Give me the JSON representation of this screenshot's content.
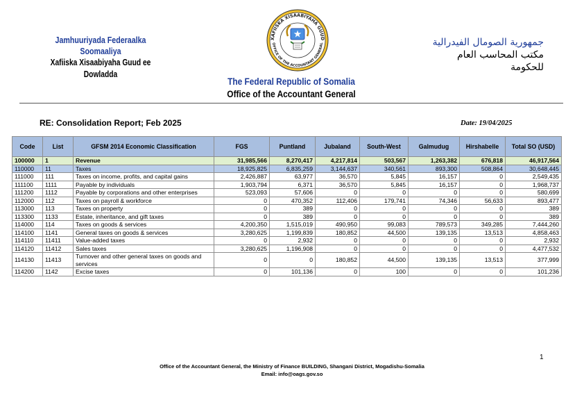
{
  "header": {
    "left_line1": "Jamhuuriyada Federaalka Soomaaliya",
    "left_line2": "Xafiiska Xisaabiyaha Guud ee",
    "left_line3": "Dowladda",
    "right_line1": "جمهورية الصومال الفيدرالية",
    "right_line2": "مكتب المحاسب العام",
    "right_line3": "للحكومة",
    "seal_top_text": "XAFIISKA XISAABIYAHA GUUD",
    "seal_bottom_text": "OFFICE OF THE ACCOUNTANT GENERAL",
    "center_line1": "The Federal Republic of Somalia",
    "center_line2": "Office of the Accountant General",
    "accent_color": "#1f3d99"
  },
  "report": {
    "title": "RE: Consolidation Report; Feb 2025",
    "date": "Date: 19/04/2025"
  },
  "table": {
    "headers": [
      "Code",
      "List",
      "GFSM 2014 Economic Classification",
      "FGS",
      "Puntland",
      "Jubaland",
      "South-West",
      "Galmudug",
      "Hirshabelle",
      "Total SO (USD)"
    ],
    "rows": [
      {
        "style": "revenue",
        "code": "100000",
        "list": "1",
        "desc": "Revenue",
        "fgs": "31,985,566",
        "puntland": "8,270,417",
        "jubaland": "4,217,814",
        "southwest": "503,567",
        "galmudug": "1,263,382",
        "hirshabelle": "676,818",
        "total": "46,917,564"
      },
      {
        "style": "taxes",
        "code": "110000",
        "list": "11",
        "desc": "Taxes",
        "fgs": "18,925,825",
        "puntland": "6,835,259",
        "jubaland": "3,144,637",
        "southwest": "340,561",
        "galmudug": "893,300",
        "hirshabelle": "508,864",
        "total": "30,648,445"
      },
      {
        "style": "std",
        "code": "111000",
        "list": "111",
        "desc": "Taxes on income, profits, and capital gains",
        "fgs": "2,426,887",
        "puntland": "63,977",
        "jubaland": "36,570",
        "southwest": "5,845",
        "galmudug": "16,157",
        "hirshabelle": "0",
        "total": "2,549,435"
      },
      {
        "style": "std",
        "code": "111100",
        "list": "1111",
        "desc": "Payable by individuals",
        "fgs": "1,903,794",
        "puntland": "6,371",
        "jubaland": "36,570",
        "southwest": "5,845",
        "galmudug": "16,157",
        "hirshabelle": "0",
        "total": "1,968,737"
      },
      {
        "style": "std",
        "code": "111200",
        "list": "1112",
        "desc": "Payable by corporations and other enterprises",
        "fgs": "523,093",
        "puntland": "57,606",
        "jubaland": "0",
        "southwest": "0",
        "galmudug": "0",
        "hirshabelle": "0",
        "total": "580,699"
      },
      {
        "style": "std",
        "code": "112000",
        "list": "112",
        "desc": "Taxes on payroll & workforce",
        "fgs": "0",
        "puntland": "470,352",
        "jubaland": "112,406",
        "southwest": "179,741",
        "galmudug": "74,346",
        "hirshabelle": "56,633",
        "total": "893,477"
      },
      {
        "style": "std",
        "code": "113000",
        "list": "113",
        "desc": "Taxes on property",
        "fgs": "0",
        "puntland": "389",
        "jubaland": "0",
        "southwest": "0",
        "galmudug": "0",
        "hirshabelle": "0",
        "total": "389"
      },
      {
        "style": "std",
        "code": "113300",
        "list": "1133",
        "desc": "Estate, inheritance, and gift taxes",
        "fgs": "0",
        "puntland": "389",
        "jubaland": "0",
        "southwest": "0",
        "galmudug": "0",
        "hirshabelle": "0",
        "total": "389"
      },
      {
        "style": "std",
        "code": "114000",
        "list": "114",
        "desc": "Taxes on goods & services",
        "fgs": "4,200,350",
        "puntland": "1,515,019",
        "jubaland": "490,950",
        "southwest": "99,083",
        "galmudug": "789,573",
        "hirshabelle": "349,285",
        "total": "7,444,260"
      },
      {
        "style": "std",
        "code": "114100",
        "list": "1141",
        "desc": "General taxes on goods & services",
        "fgs": "3,280,625",
        "puntland": "1,199,839",
        "jubaland": "180,852",
        "southwest": "44,500",
        "galmudug": "139,135",
        "hirshabelle": "13,513",
        "total": "4,858,463"
      },
      {
        "style": "std",
        "code": "114110",
        "list": "11411",
        "desc": "Value-added taxes",
        "fgs": "0",
        "puntland": "2,932",
        "jubaland": "0",
        "southwest": "0",
        "galmudug": "0",
        "hirshabelle": "0",
        "total": "2,932"
      },
      {
        "style": "std",
        "code": "114120",
        "list": "11412",
        "desc": "Sales taxes",
        "fgs": "3,280,625",
        "puntland": "1,196,908",
        "jubaland": "0",
        "southwest": "0",
        "galmudug": "0",
        "hirshabelle": "0",
        "total": "4,477,532"
      },
      {
        "style": "std",
        "code": "114130",
        "list": "11413",
        "desc": "Turnover and other general taxes on goods and services",
        "fgs": "0",
        "puntland": "0",
        "jubaland": "180,852",
        "southwest": "44,500",
        "galmudug": "139,135",
        "hirshabelle": "13,513",
        "total": "377,999"
      },
      {
        "style": "std",
        "code": "114200",
        "list": "1142",
        "desc": "Excise taxes",
        "fgs": "0",
        "puntland": "101,136",
        "jubaland": "0",
        "southwest": "100",
        "galmudug": "0",
        "hirshabelle": "0",
        "total": "101,236"
      }
    ]
  },
  "page_number": "1",
  "footer": {
    "line1": "Office of the Accountant General, the Ministry of Finance BUILDING, Shangani District, Mogadishu-Somalia",
    "line2": "Email: info@oags.gov.so"
  }
}
